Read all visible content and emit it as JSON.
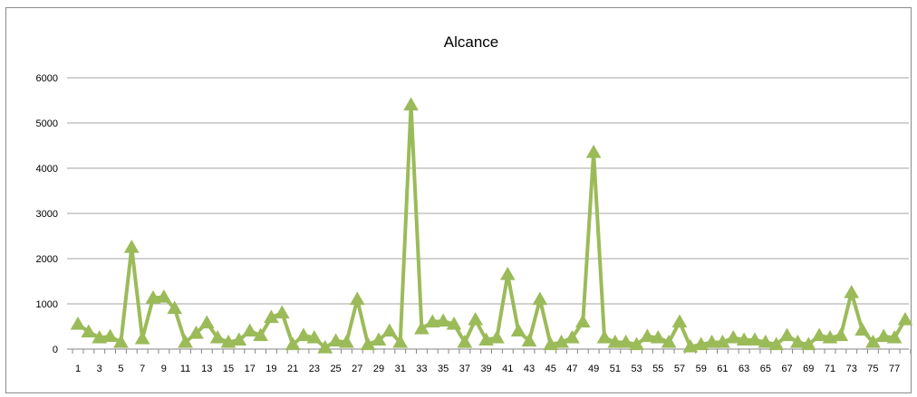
{
  "chart_data": {
    "type": "line",
    "title": "Alcance",
    "xlabel": "",
    "ylabel": "",
    "ylim": [
      0,
      6000
    ],
    "yticks": [
      "0",
      "1000",
      "2000",
      "3000",
      "4000",
      "5000",
      "6000"
    ],
    "xtick_labels": [
      "1",
      "3",
      "5",
      "7",
      "9",
      "11",
      "13",
      "15",
      "17",
      "19",
      "21",
      "23",
      "25",
      "27",
      "29",
      "31",
      "33",
      "35",
      "37",
      "39",
      "41",
      "43",
      "45",
      "47",
      "49",
      "51",
      "53",
      "55",
      "57",
      "59",
      "61",
      "63",
      "65",
      "67",
      "69",
      "71",
      "73",
      "75",
      "77"
    ],
    "grid": "horizontal",
    "legend": "none",
    "marker": "triangle",
    "color": "#9bbb59",
    "x": [
      1,
      2,
      3,
      4,
      5,
      6,
      7,
      8,
      9,
      10,
      11,
      12,
      13,
      14,
      15,
      16,
      17,
      18,
      19,
      20,
      21,
      22,
      23,
      24,
      25,
      26,
      27,
      28,
      29,
      30,
      31,
      32,
      33,
      34,
      35,
      36,
      37,
      38,
      39,
      40,
      41,
      42,
      43,
      44,
      45,
      46,
      47,
      48,
      49,
      50,
      51,
      52,
      53,
      54,
      55,
      56,
      57,
      58,
      59,
      60,
      61,
      62,
      63,
      64,
      65,
      66,
      67,
      68,
      69,
      70,
      71,
      72,
      73,
      74,
      75,
      76,
      77,
      78
    ],
    "series": [
      {
        "values": [
          550,
          380,
          250,
          280,
          150,
          2250,
          230,
          1130,
          1150,
          900,
          150,
          350,
          580,
          250,
          150,
          200,
          400,
          300,
          700,
          800,
          100,
          300,
          250,
          30,
          180,
          150,
          1100,
          100,
          200,
          400,
          150,
          5400,
          450,
          600,
          620,
          550,
          150,
          650,
          200,
          250,
          1650,
          400,
          180,
          1100,
          100,
          150,
          250,
          600,
          4350,
          250,
          150,
          150,
          100,
          280,
          250,
          150,
          600,
          50,
          100,
          150,
          150,
          250,
          200,
          200,
          150,
          100,
          300,
          150,
          100,
          300,
          250,
          300,
          1250,
          420,
          150,
          280,
          250,
          650
        ]
      }
    ]
  }
}
